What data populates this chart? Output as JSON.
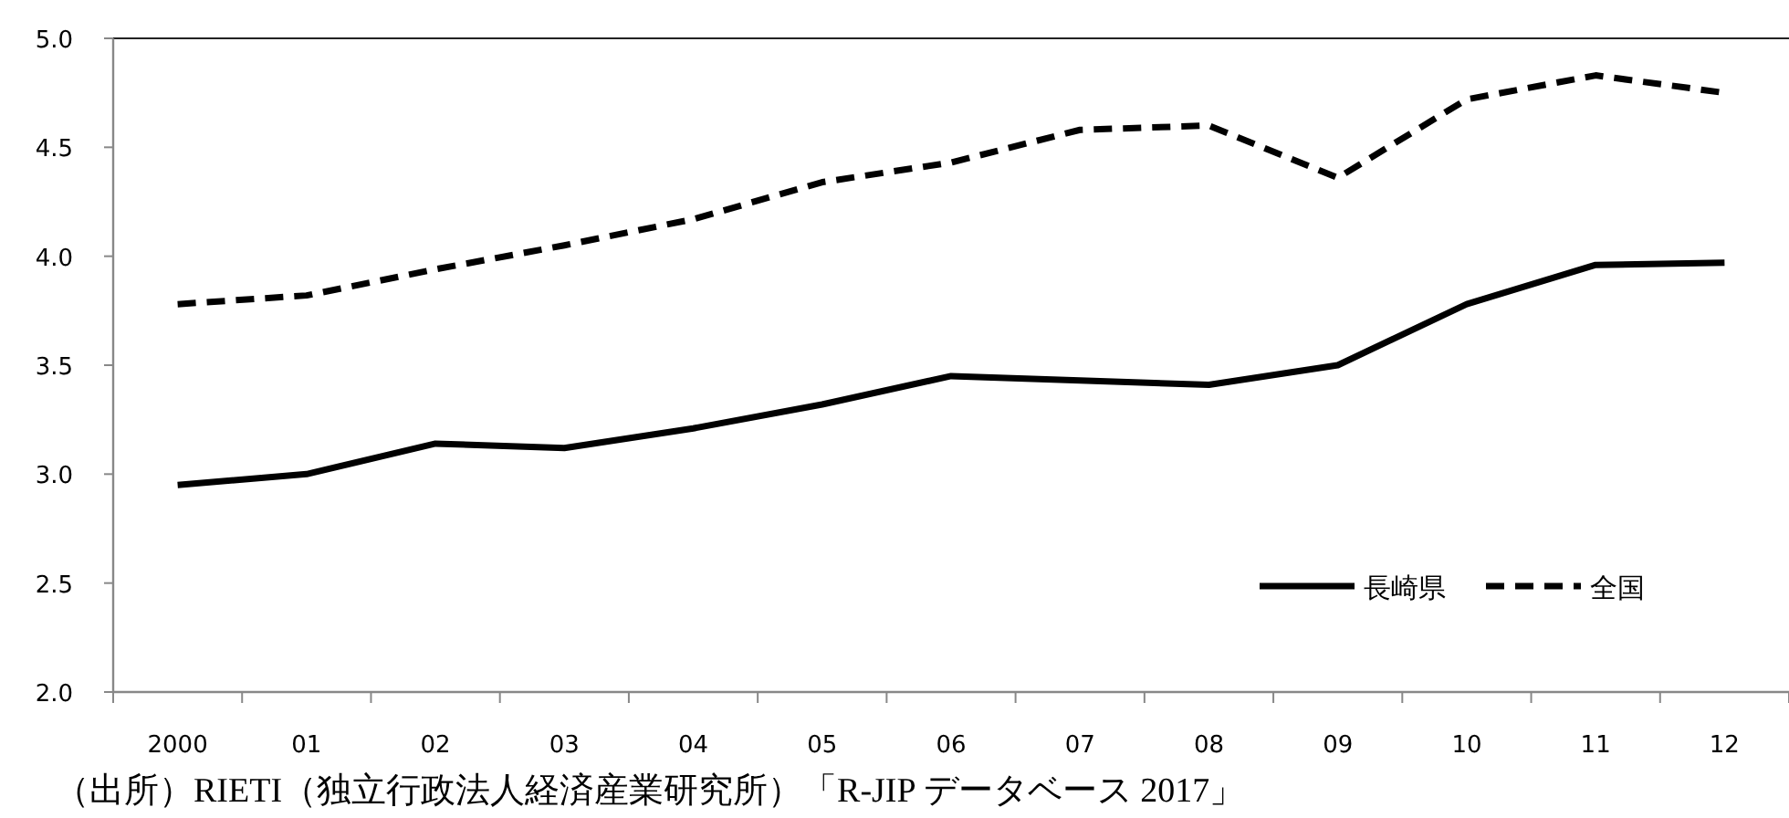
{
  "chart_data": {
    "type": "line",
    "categories": [
      "2000",
      "01",
      "02",
      "03",
      "04",
      "05",
      "06",
      "07",
      "08",
      "09",
      "10",
      "11",
      "12"
    ],
    "series": [
      {
        "name": "長崎県",
        "color": "#000000",
        "line_style": "solid",
        "values": [
          2.95,
          3.0,
          3.14,
          3.12,
          3.21,
          3.32,
          3.45,
          3.43,
          3.41,
          3.5,
          3.78,
          3.96,
          3.97
        ]
      },
      {
        "name": "全国",
        "color": "#000000",
        "line_style": "dashed",
        "values": [
          3.78,
          3.82,
          3.94,
          4.05,
          4.17,
          4.34,
          4.43,
          4.58,
          4.6,
          4.36,
          4.72,
          4.83,
          4.75
        ]
      }
    ],
    "ylim": [
      2.0,
      5.0
    ],
    "yticks": [
      {
        "value": 2,
        "label": "2.0"
      },
      {
        "value": 2.5,
        "label": "2.5"
      },
      {
        "value": 3,
        "label": "3.0"
      },
      {
        "value": 3.5,
        "label": "3.5"
      },
      {
        "value": 4,
        "label": "4.0"
      },
      {
        "value": 4.5,
        "label": "4.5"
      },
      {
        "value": 5,
        "label": "5.0"
      }
    ],
    "legend": "bottom right",
    "marker": "none",
    "annotations": [
      "（出所）RIETI（独立行政法人経済産業研究所）「R-JIP データベース 2017」"
    ]
  }
}
